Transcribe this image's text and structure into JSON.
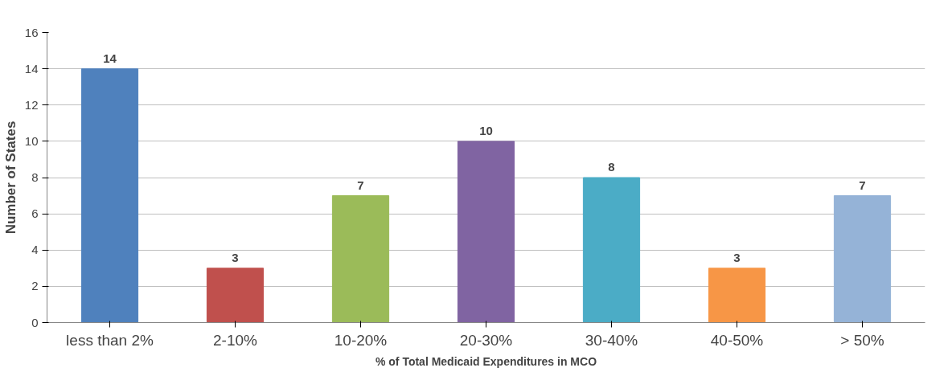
{
  "chart_data": {
    "type": "bar",
    "xlabel": "% of Total Medicaid Expenditures in MCO",
    "ylabel": "Number of States",
    "categories": [
      "less than 2%",
      "2-10%",
      "10-20%",
      "20-30%",
      "30-40%",
      "40-50%",
      "> 50%"
    ],
    "values": [
      14,
      3,
      7,
      10,
      8,
      3,
      7
    ],
    "colors": [
      "#4f81bd",
      "#c0504d",
      "#9bbb59",
      "#8064a2",
      "#4bacc6",
      "#f79646",
      "#95b3d7"
    ],
    "ylim": [
      0,
      16
    ],
    "yticks": [
      0,
      2,
      4,
      6,
      8,
      10,
      12,
      14,
      16
    ],
    "grid": "y",
    "data_labels": true
  }
}
